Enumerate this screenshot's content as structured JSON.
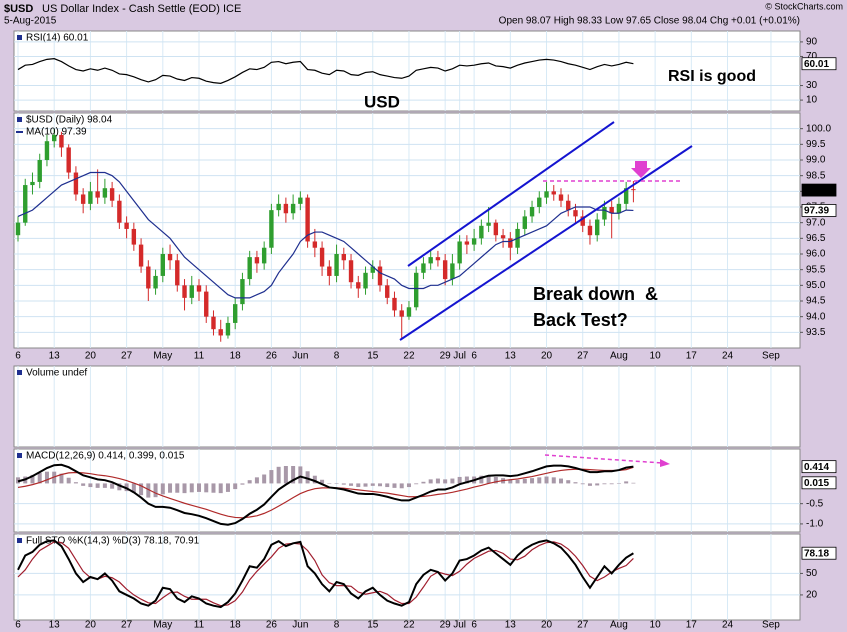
{
  "header": {
    "symbol": "$USD",
    "name": "US Dollar Index - Cash Settle (EOD) ICE",
    "date": "5-Aug-2015",
    "quote": "Open 98.07   High 98.33   Low 97.65   Close 98.04   Chg +0.01 (+0.01%)",
    "credit": "© StockCharts.com"
  },
  "chart_data": [
    {
      "type": "line",
      "title": "RSI(14) 60.01",
      "ylim": [
        -5,
        105
      ],
      "yticks": [
        90,
        70,
        30,
        10
      ],
      "grid": true,
      "annotations": [
        "RSI is good",
        "USD"
      ],
      "series": [
        {
          "color": "#000000",
          "last_label": true,
          "values": [
            52,
            58,
            59,
            63,
            66,
            67,
            63,
            57,
            52,
            50,
            53,
            51,
            54,
            51,
            46,
            45,
            42,
            38,
            35,
            38,
            44,
            43,
            39,
            37,
            41,
            40,
            36,
            34,
            33,
            37,
            42,
            48,
            53,
            52,
            55,
            62,
            63,
            60,
            62,
            63,
            52,
            51,
            47,
            45,
            51,
            50,
            45,
            44,
            48,
            49,
            45,
            43,
            41,
            40,
            43,
            51,
            53,
            55,
            54,
            50,
            53,
            58,
            57,
            58,
            60,
            61,
            57,
            56,
            54,
            58,
            61,
            63,
            65,
            66,
            65,
            63,
            60,
            58,
            55,
            52,
            56,
            59,
            57,
            59,
            62,
            60.01
          ]
        }
      ]
    },
    {
      "type": "candlestick",
      "title": "$USD (Daily) 98.04",
      "ylim": [
        93.0,
        100.5
      ],
      "grid": true,
      "up_color": "#2f9e2f",
      "down_color": "#d42a2a",
      "last_label": true,
      "yticks": [
        {
          "value": 100,
          "label": "100.0"
        },
        99.5,
        {
          "value": 99,
          "label": "99.0"
        },
        98.5,
        {
          "value": 98,
          "label": "98.0"
        },
        97.5,
        {
          "value": 97,
          "label": "97.0"
        },
        96.5,
        {
          "value": 96,
          "label": "96.0"
        },
        95.5,
        {
          "value": 95,
          "label": "95.0"
        },
        94.5,
        {
          "value": 94,
          "label": "94.0"
        },
        93.5
      ],
      "annotations": [
        "Break down  &",
        "Back Test?"
      ],
      "categories": [
        "6",
        null,
        null,
        null,
        null,
        "13",
        null,
        null,
        null,
        null,
        "20",
        null,
        null,
        null,
        null,
        "27",
        null,
        null,
        null,
        null,
        "May",
        null,
        null,
        null,
        null,
        "11",
        null,
        null,
        null,
        null,
        "18",
        null,
        null,
        null,
        null,
        "26",
        null,
        null,
        null,
        "Jun",
        null,
        null,
        null,
        null,
        "8",
        null,
        null,
        null,
        null,
        "15",
        null,
        null,
        null,
        null,
        "22",
        null,
        null,
        null,
        null,
        "29",
        null,
        "Jul",
        null,
        "6",
        null,
        null,
        null,
        null,
        "13",
        null,
        null,
        null,
        null,
        "20",
        null,
        null,
        null,
        null,
        "27",
        null,
        null,
        null,
        null,
        "Aug",
        null,
        null
      ],
      "future_categories": [
        "10",
        "17",
        "24",
        "Sep"
      ],
      "open": [
        96.6,
        97.0,
        98.2,
        98.3,
        99.0,
        99.6,
        99.8,
        99.4,
        98.6,
        97.9,
        97.6,
        98.0,
        97.8,
        98.1,
        97.7,
        97.0,
        96.8,
        96.3,
        95.6,
        94.9,
        95.3,
        96.0,
        95.8,
        95.0,
        94.6,
        95.0,
        94.8,
        94.0,
        93.6,
        93.4,
        93.8,
        94.4,
        95.2,
        95.9,
        95.7,
        96.2,
        97.4,
        97.6,
        97.3,
        97.6,
        97.8,
        96.4,
        96.2,
        95.6,
        95.3,
        96.0,
        95.8,
        95.1,
        94.9,
        95.4,
        95.6,
        95.0,
        94.6,
        94.2,
        94.0,
        94.3,
        95.4,
        95.7,
        95.9,
        95.8,
        95.2,
        95.7,
        96.4,
        96.3,
        96.5,
        96.9,
        97.0,
        96.6,
        96.5,
        96.2,
        96.8,
        97.2,
        97.5,
        97.8,
        98.0,
        97.9,
        97.7,
        97.4,
        97.2,
        96.9,
        96.6,
        97.1,
        97.5,
        97.3,
        97.6,
        98.07
      ],
      "high": [
        97.2,
        98.4,
        98.6,
        99.2,
        99.8,
        100.0,
        99.9,
        99.5,
        98.8,
        98.1,
        98.3,
        98.7,
        98.4,
        98.3,
        97.9,
        97.2,
        97.0,
        96.5,
        95.8,
        95.5,
        96.2,
        96.3,
        96.0,
        95.2,
        95.3,
        95.2,
        95.0,
        94.2,
        93.9,
        94.0,
        94.6,
        95.4,
        96.1,
        96.1,
        96.4,
        97.6,
        97.9,
        97.8,
        97.9,
        98.0,
        97.9,
        96.8,
        96.4,
        95.8,
        96.3,
        96.2,
        96.0,
        95.3,
        95.6,
        95.8,
        95.8,
        95.2,
        94.8,
        94.4,
        94.5,
        95.6,
        95.9,
        96.1,
        96.1,
        96.0,
        96.0,
        96.6,
        96.6,
        96.8,
        97.1,
        97.5,
        97.1,
        96.8,
        96.7,
        97.0,
        97.4,
        97.7,
        98.0,
        98.3,
        98.2,
        98.1,
        97.9,
        97.6,
        97.4,
        97.1,
        97.3,
        97.7,
        97.7,
        97.8,
        98.3,
        98.33
      ],
      "low": [
        96.4,
        96.9,
        97.9,
        98.1,
        98.8,
        99.4,
        99.1,
        98.4,
        97.7,
        97.3,
        97.4,
        97.6,
        97.6,
        97.5,
        96.8,
        96.5,
        96.1,
        95.4,
        94.5,
        94.7,
        95.1,
        95.5,
        94.8,
        94.2,
        94.4,
        94.5,
        93.8,
        93.4,
        93.2,
        93.3,
        93.6,
        94.2,
        95.0,
        95.4,
        95.5,
        96.0,
        97.2,
        97.0,
        97.1,
        97.4,
        96.2,
        95.9,
        95.3,
        95.0,
        95.1,
        95.5,
        94.9,
        94.6,
        94.7,
        95.2,
        94.8,
        94.4,
        94.0,
        93.3,
        93.9,
        94.2,
        95.2,
        95.5,
        95.6,
        95.0,
        95.0,
        95.5,
        96.0,
        96.1,
        96.3,
        96.7,
        96.4,
        96.2,
        95.8,
        96.0,
        96.6,
        97.0,
        97.3,
        97.6,
        97.7,
        97.5,
        97.2,
        97.0,
        96.7,
        96.3,
        96.4,
        96.9,
        96.5,
        97.1,
        97.4,
        97.65
      ],
      "close": [
        97.0,
        98.2,
        98.3,
        99.0,
        99.6,
        99.8,
        99.4,
        98.6,
        97.9,
        97.6,
        98.0,
        97.8,
        98.1,
        97.7,
        97.0,
        96.8,
        96.3,
        95.6,
        94.9,
        95.3,
        96.0,
        95.8,
        95.0,
        94.6,
        95.0,
        94.8,
        94.0,
        93.6,
        93.4,
        93.8,
        94.4,
        95.2,
        95.9,
        95.7,
        96.2,
        97.4,
        97.6,
        97.3,
        97.6,
        97.8,
        96.4,
        96.2,
        95.6,
        95.3,
        96.0,
        95.8,
        95.1,
        94.9,
        95.4,
        95.6,
        95.0,
        94.6,
        94.2,
        94.0,
        94.3,
        95.4,
        95.7,
        95.9,
        95.8,
        95.2,
        95.7,
        96.4,
        96.3,
        96.5,
        96.9,
        97.0,
        96.6,
        96.5,
        96.2,
        96.8,
        97.2,
        97.5,
        97.8,
        98.0,
        97.9,
        97.7,
        97.4,
        97.2,
        96.9,
        96.6,
        97.1,
        97.5,
        97.3,
        97.6,
        98.1,
        98.04
      ],
      "series": [
        {
          "name": "MA(10) 97.39",
          "color": "#1f2f8f",
          "last_label": true,
          "values": [
            97.2,
            97.3,
            97.4,
            97.6,
            97.8,
            98.0,
            98.2,
            98.3,
            98.4,
            98.5,
            98.6,
            98.6,
            98.6,
            98.5,
            98.3,
            98.0,
            97.7,
            97.4,
            97.1,
            96.9,
            96.7,
            96.5,
            96.2,
            95.9,
            95.7,
            95.5,
            95.3,
            95.1,
            94.9,
            94.7,
            94.6,
            94.6,
            94.6,
            94.7,
            94.8,
            95.0,
            95.4,
            95.7,
            96.0,
            96.4,
            96.6,
            96.7,
            96.7,
            96.6,
            96.5,
            96.4,
            96.2,
            96.0,
            95.8,
            95.6,
            95.4,
            95.3,
            95.2,
            95.0,
            94.9,
            94.9,
            94.9,
            95.0,
            95.0,
            95.1,
            95.2,
            95.3,
            95.5,
            95.7,
            95.9,
            96.1,
            96.3,
            96.4,
            96.4,
            96.5,
            96.6,
            96.7,
            96.8,
            96.9,
            97.1,
            97.3,
            97.4,
            97.5,
            97.5,
            97.5,
            97.4,
            97.4,
            97.3,
            97.3,
            97.4,
            97.39
          ]
        }
      ]
    },
    {
      "type": "volume",
      "title": "Volume undef"
    },
    {
      "type": "line",
      "title": "MACD(12,26,9) 0.414, 0.399, 0.015",
      "ylim": [
        -1.2,
        0.85
      ],
      "yticks": [
        -0.5,
        {
          "value": -1,
          "label": "-1.0"
        }
      ],
      "grid": true,
      "series": [
        {
          "color": "#a898a8",
          "style": "histogram",
          "last_label": true,
          "values": [
            0.15,
            0.17,
            0.21,
            0.26,
            0.29,
            0.29,
            0.24,
            0.14,
            0.03,
            -0.06,
            -0.09,
            -0.11,
            -0.11,
            -0.13,
            -0.17,
            -0.19,
            -0.23,
            -0.29,
            -0.35,
            -0.34,
            -0.27,
            -0.23,
            -0.23,
            -0.24,
            -0.22,
            -0.21,
            -0.22,
            -0.23,
            -0.24,
            -0.21,
            -0.14,
            -0.03,
            0.08,
            0.15,
            0.22,
            0.33,
            0.41,
            0.43,
            0.43,
            0.42,
            0.3,
            0.19,
            0.09,
            0.01,
            -0.01,
            -0.03,
            -0.06,
            -0.09,
            -0.08,
            -0.06,
            -0.07,
            -0.09,
            -0.11,
            -0.12,
            -0.09,
            -0.02,
            0.04,
            0.1,
            0.12,
            0.1,
            0.12,
            0.16,
            0.17,
            0.17,
            0.19,
            0.19,
            0.16,
            0.13,
            0.09,
            0.09,
            0.11,
            0.13,
            0.15,
            0.17,
            0.15,
            0.12,
            0.08,
            0.03,
            -0.02,
            -0.06,
            -0.05,
            -0.02,
            -0.02,
            0.01,
            0.05,
            0.015
          ]
        },
        {
          "color": "#b02a2a",
          "values": [
            -0.1,
            -0.07,
            -0.03,
            0.02,
            0.09,
            0.16,
            0.22,
            0.26,
            0.27,
            0.26,
            0.24,
            0.21,
            0.19,
            0.16,
            0.12,
            0.07,
            0.01,
            -0.06,
            -0.15,
            -0.24,
            -0.31,
            -0.37,
            -0.43,
            -0.49,
            -0.54,
            -0.59,
            -0.64,
            -0.7,
            -0.76,
            -0.81,
            -0.84,
            -0.85,
            -0.83,
            -0.8,
            -0.74,
            -0.66,
            -0.56,
            -0.46,
            -0.35,
            -0.25,
            -0.18,
            -0.13,
            -0.11,
            -0.11,
            -0.11,
            -0.12,
            -0.14,
            -0.16,
            -0.18,
            -0.2,
            -0.22,
            -0.24,
            -0.27,
            -0.3,
            -0.33,
            -0.33,
            -0.32,
            -0.3,
            -0.27,
            -0.25,
            -0.22,
            -0.18,
            -0.14,
            -0.09,
            -0.05,
            0.0,
            0.04,
            0.07,
            0.09,
            0.11,
            0.14,
            0.17,
            0.21,
            0.25,
            0.29,
            0.32,
            0.34,
            0.35,
            0.35,
            0.34,
            0.33,
            0.32,
            0.32,
            0.32,
            0.34,
            0.399
          ]
        },
        {
          "color": "#000000",
          "width": 2,
          "last_label": true,
          "values": [
            0.05,
            0.1,
            0.18,
            0.28,
            0.38,
            0.45,
            0.46,
            0.4,
            0.3,
            0.2,
            0.15,
            0.1,
            0.08,
            0.03,
            -0.05,
            -0.12,
            -0.22,
            -0.35,
            -0.5,
            -0.58,
            -0.58,
            -0.6,
            -0.66,
            -0.73,
            -0.76,
            -0.8,
            -0.86,
            -0.93,
            -1.0,
            -1.02,
            -0.98,
            -0.88,
            -0.75,
            -0.65,
            -0.52,
            -0.33,
            -0.15,
            -0.03,
            0.08,
            0.17,
            0.12,
            0.06,
            -0.02,
            -0.1,
            -0.12,
            -0.15,
            -0.2,
            -0.25,
            -0.26,
            -0.26,
            -0.29,
            -0.33,
            -0.38,
            -0.42,
            -0.42,
            -0.35,
            -0.28,
            -0.2,
            -0.15,
            -0.15,
            -0.1,
            -0.02,
            0.03,
            0.08,
            0.14,
            0.19,
            0.2,
            0.2,
            0.18,
            0.2,
            0.25,
            0.3,
            0.36,
            0.42,
            0.44,
            0.44,
            0.42,
            0.38,
            0.33,
            0.28,
            0.28,
            0.3,
            0.3,
            0.33,
            0.39,
            0.414
          ]
        }
      ]
    },
    {
      "type": "line",
      "title": "Full STO %K(14,3) %D(3) 78.18, 70.91",
      "ylim": [
        -15,
        105
      ],
      "yticks": [
        50,
        20
      ],
      "grid": true,
      "series": [
        {
          "color": "#a01e2e",
          "values": [
            45,
            55,
            70,
            82,
            88,
            94,
            93,
            85,
            69,
            53,
            44,
            42,
            46,
            44,
            38,
            28,
            20,
            14,
            9,
            8,
            16,
            23,
            24,
            18,
            14,
            14,
            14,
            9,
            5,
            6,
            12,
            24,
            41,
            53,
            63,
            73,
            85,
            91,
            92,
            91,
            82,
            68,
            48,
            37,
            33,
            33,
            32,
            24,
            21,
            23,
            25,
            21,
            13,
            8,
            8,
            17,
            31,
            46,
            52,
            49,
            47,
            53,
            63,
            71,
            76,
            81,
            82,
            78,
            70,
            69,
            74,
            83,
            89,
            93,
            94,
            91,
            84,
            74,
            61,
            46,
            40,
            45,
            52,
            57,
            61,
            70.91
          ]
        },
        {
          "color": "#000000",
          "width": 2,
          "last_label": true,
          "values": [
            55,
            75,
            80,
            90,
            95,
            96,
            88,
            70,
            50,
            38,
            45,
            42,
            50,
            40,
            25,
            20,
            15,
            8,
            5,
            12,
            30,
            28,
            15,
            10,
            18,
            15,
            8,
            5,
            3,
            10,
            22,
            40,
            60,
            58,
            70,
            90,
            95,
            88,
            92,
            94,
            60,
            50,
            35,
            25,
            38,
            35,
            22,
            15,
            25,
            30,
            20,
            12,
            8,
            5,
            10,
            35,
            48,
            55,
            52,
            40,
            50,
            68,
            70,
            75,
            82,
            86,
            78,
            70,
            62,
            75,
            84,
            90,
            94,
            96,
            92,
            86,
            75,
            62,
            45,
            30,
            45,
            60,
            50,
            62,
            72,
            78.18
          ]
        }
      ]
    }
  ]
}
